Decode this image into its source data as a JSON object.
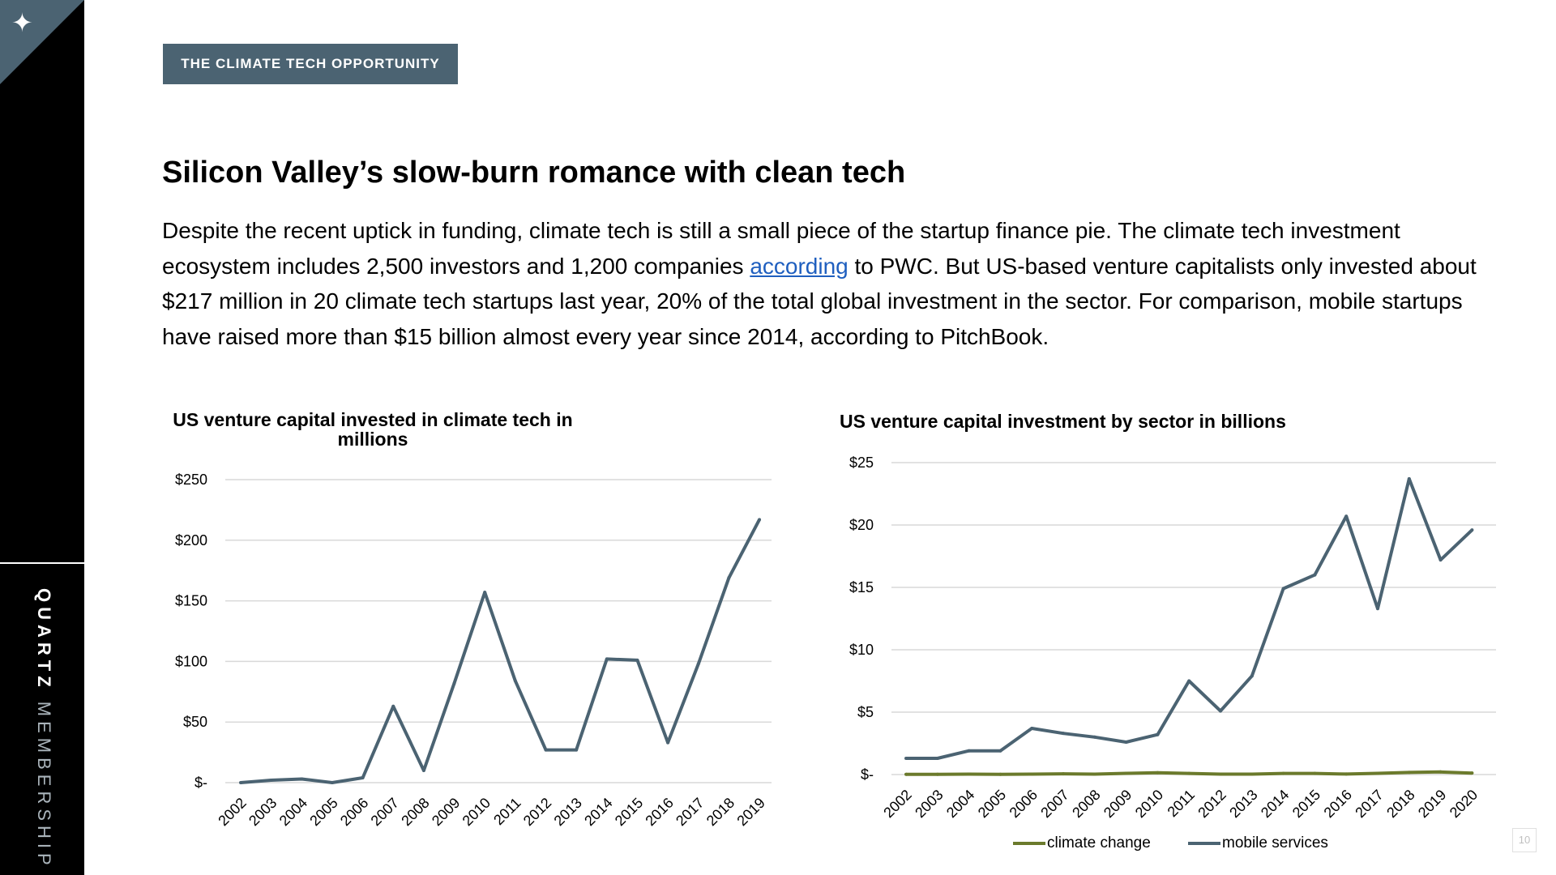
{
  "sidebar": {
    "logo_icon": "star-icon",
    "brand_bold": "QUARTZ",
    "brand_light": "MEMBERSHIP"
  },
  "header": {
    "section_tag": "THE CLIMATE TECH OPPORTUNITY",
    "title": "Silicon Valley’s slow-burn romance with clean tech"
  },
  "body": {
    "part1": "Despite the recent uptick in funding, climate tech is still a small piece of the startup finance pie. The climate tech investment ecosystem includes 2,500 investors and 1,200 companies ",
    "link": "according",
    "part2": " to PWC. But US-based venture capitalists only invested about $217 million in 20 climate tech startups last year, 20% of the total global investment in the sector. For comparison, mobile startups have raised more than $15 billion almost every year since 2014, according to PitchBook."
  },
  "colors": {
    "accent": "#4b6372",
    "mobile_line": "#4b6372",
    "climate_line": "#6b7a2c",
    "link": "#1f5fbf"
  },
  "page_number": "10",
  "chart_data": [
    {
      "type": "line",
      "title": "US venture capital invested in climate tech in millions",
      "categories": [
        "2002",
        "2003",
        "2004",
        "2005",
        "2006",
        "2007",
        "2008",
        "2009",
        "2010",
        "2011",
        "2012",
        "2013",
        "2014",
        "2015",
        "2016",
        "2017",
        "2018",
        "2019"
      ],
      "series": [
        {
          "values": [
            0,
            2,
            3,
            0,
            4,
            63,
            10,
            82,
            157,
            84,
            27,
            27,
            102,
            101,
            33,
            98,
            169,
            217
          ]
        }
      ],
      "yticks": [
        "$-",
        "$50",
        "$100",
        "$150",
        "$200",
        "$250"
      ],
      "ylim": [
        0,
        250
      ],
      "grid": true,
      "legend": "none"
    },
    {
      "type": "line",
      "title": "US venture capital investment by sector in billions",
      "categories": [
        "2002",
        "2003",
        "2004",
        "2005",
        "2006",
        "2007",
        "2008",
        "2009",
        "2010",
        "2011",
        "2012",
        "2013",
        "2014",
        "2015",
        "2016",
        "2017",
        "2018",
        "2019",
        "2020"
      ],
      "series": [
        {
          "name": "climate change",
          "values": [
            0.02,
            0.02,
            0.03,
            0.02,
            0.03,
            0.06,
            0.03,
            0.1,
            0.15,
            0.09,
            0.03,
            0.03,
            0.09,
            0.09,
            0.04,
            0.1,
            0.17,
            0.21,
            0.12
          ]
        },
        {
          "name": "mobile services",
          "values": [
            1.3,
            1.3,
            1.9,
            1.9,
            3.7,
            3.3,
            3.0,
            2.6,
            3.2,
            7.5,
            5.1,
            7.9,
            14.9,
            16.0,
            20.7,
            13.3,
            23.7,
            17.2,
            19.6
          ]
        }
      ],
      "yticks": [
        "$-",
        "$5",
        "$10",
        "$15",
        "$20",
        "$25"
      ],
      "ylim": [
        0,
        25
      ],
      "grid": true,
      "legend": "bottom"
    }
  ]
}
